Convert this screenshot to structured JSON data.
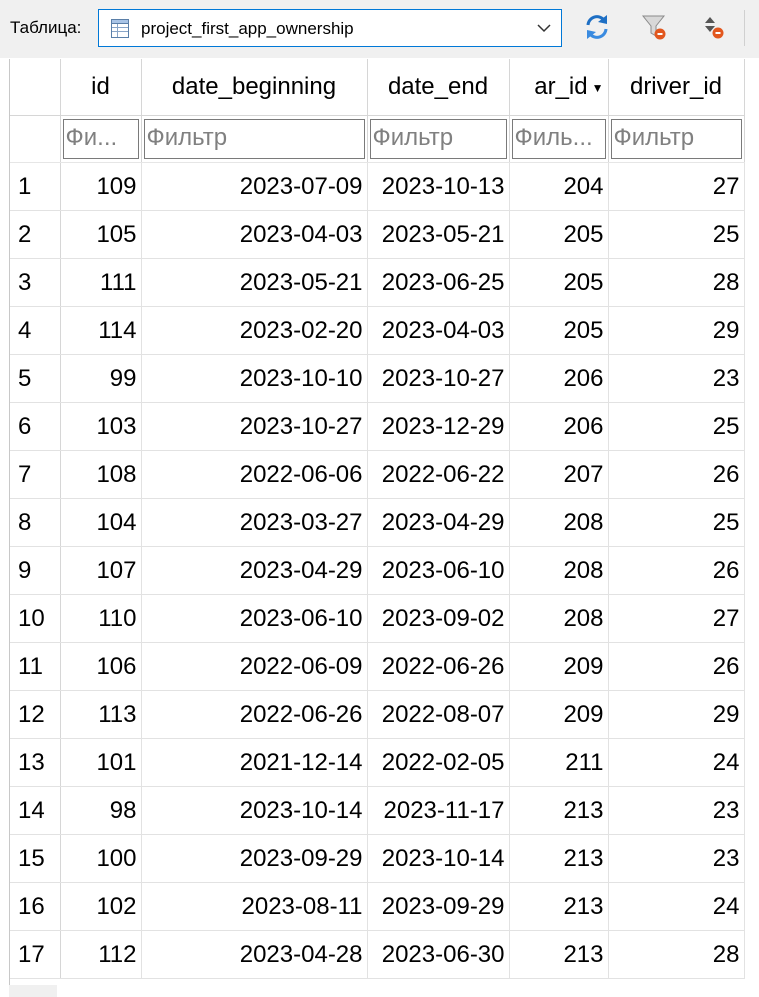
{
  "toolbar": {
    "table_label": "Таблица:",
    "selected_table": "project_first_app_ownership",
    "table_icon": "table-icon",
    "buttons": [
      {
        "name": "refresh-icon"
      },
      {
        "name": "clear-filters-icon"
      },
      {
        "name": "clear-sorting-icon"
      }
    ]
  },
  "grid": {
    "columns": [
      {
        "label": "id",
        "filter": "Фи..."
      },
      {
        "label": "date_beginning",
        "filter": "Фильтр"
      },
      {
        "label": "date_end",
        "filter": "Фильтр"
      },
      {
        "label": "ar_id",
        "filter": "Филь...",
        "sort_indicator": "▼"
      },
      {
        "label": "driver_id",
        "filter": "Фильтр"
      }
    ],
    "rows": [
      {
        "n": "1",
        "id": "109",
        "date_beginning": "2023-07-09",
        "date_end": "2023-10-13",
        "car_id": "204",
        "driver_id": "27"
      },
      {
        "n": "2",
        "id": "105",
        "date_beginning": "2023-04-03",
        "date_end": "2023-05-21",
        "car_id": "205",
        "driver_id": "25"
      },
      {
        "n": "3",
        "id": "111",
        "date_beginning": "2023-05-21",
        "date_end": "2023-06-25",
        "car_id": "205",
        "driver_id": "28"
      },
      {
        "n": "4",
        "id": "114",
        "date_beginning": "2023-02-20",
        "date_end": "2023-04-03",
        "car_id": "205",
        "driver_id": "29"
      },
      {
        "n": "5",
        "id": "99",
        "date_beginning": "2023-10-10",
        "date_end": "2023-10-27",
        "car_id": "206",
        "driver_id": "23"
      },
      {
        "n": "6",
        "id": "103",
        "date_beginning": "2023-10-27",
        "date_end": "2023-12-29",
        "car_id": "206",
        "driver_id": "25"
      },
      {
        "n": "7",
        "id": "108",
        "date_beginning": "2022-06-06",
        "date_end": "2022-06-22",
        "car_id": "207",
        "driver_id": "26"
      },
      {
        "n": "8",
        "id": "104",
        "date_beginning": "2023-03-27",
        "date_end": "2023-04-29",
        "car_id": "208",
        "driver_id": "25"
      },
      {
        "n": "9",
        "id": "107",
        "date_beginning": "2023-04-29",
        "date_end": "2023-06-10",
        "car_id": "208",
        "driver_id": "26"
      },
      {
        "n": "10",
        "id": "110",
        "date_beginning": "2023-06-10",
        "date_end": "2023-09-02",
        "car_id": "208",
        "driver_id": "27"
      },
      {
        "n": "11",
        "id": "106",
        "date_beginning": "2022-06-09",
        "date_end": "2022-06-26",
        "car_id": "209",
        "driver_id": "26"
      },
      {
        "n": "12",
        "id": "113",
        "date_beginning": "2022-06-26",
        "date_end": "2022-08-07",
        "car_id": "209",
        "driver_id": "29"
      },
      {
        "n": "13",
        "id": "101",
        "date_beginning": "2021-12-14",
        "date_end": "2022-02-05",
        "car_id": "211",
        "driver_id": "24"
      },
      {
        "n": "14",
        "id": "98",
        "date_beginning": "2023-10-14",
        "date_end": "2023-11-17",
        "car_id": "213",
        "driver_id": "23"
      },
      {
        "n": "15",
        "id": "100",
        "date_beginning": "2023-09-29",
        "date_end": "2023-10-14",
        "car_id": "213",
        "driver_id": "23"
      },
      {
        "n": "16",
        "id": "102",
        "date_beginning": "2023-08-11",
        "date_end": "2023-09-29",
        "car_id": "213",
        "driver_id": "24"
      },
      {
        "n": "17",
        "id": "112",
        "date_beginning": "2023-04-28",
        "date_end": "2023-06-30",
        "car_id": "213",
        "driver_id": "28"
      }
    ]
  },
  "colors": {
    "select_border": "#0078d7",
    "toolbar_bg": "#f0f0f0",
    "refresh_icon": "#1e6fc4",
    "filter_placeholder": "#808080"
  }
}
